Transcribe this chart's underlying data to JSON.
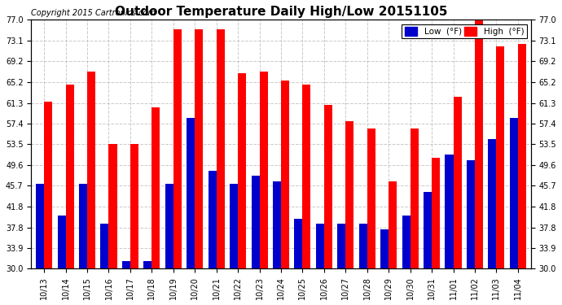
{
  "title": "Outdoor Temperature Daily High/Low 20151105",
  "copyright": "Copyright 2015 Cartronics.com",
  "legend_low": "Low  (°F)",
  "legend_high": "High  (°F)",
  "categories": [
    "10/13",
    "10/14",
    "10/15",
    "10/16",
    "10/17",
    "10/18",
    "10/19",
    "10/20",
    "10/21",
    "10/22",
    "10/23",
    "10/24",
    "10/25",
    "10/26",
    "10/27",
    "10/28",
    "10/29",
    "10/30",
    "10/31",
    "11/01",
    "11/02",
    "11/03",
    "11/04"
  ],
  "highs": [
    61.5,
    64.8,
    67.2,
    53.5,
    53.5,
    60.5,
    75.2,
    75.2,
    75.2,
    67.0,
    67.2,
    65.5,
    64.8,
    61.0,
    57.8,
    56.5,
    46.5,
    56.5,
    51.0,
    62.5,
    77.0,
    72.0,
    72.5
  ],
  "lows": [
    46.0,
    40.0,
    46.0,
    38.5,
    31.5,
    31.5,
    46.0,
    58.5,
    48.5,
    46.0,
    47.5,
    46.5,
    39.5,
    38.5,
    38.5,
    38.5,
    37.5,
    40.0,
    44.5,
    51.5,
    50.5,
    54.5,
    58.5
  ],
  "yticks": [
    30.0,
    33.9,
    37.8,
    41.8,
    45.7,
    49.6,
    53.5,
    57.4,
    61.3,
    65.2,
    69.2,
    73.1,
    77.0
  ],
  "ymin": 30.0,
  "ymax": 77.0,
  "bar_width": 0.38,
  "high_color": "#ff0000",
  "low_color": "#0000cc",
  "bg_color": "#ffffff",
  "grid_color": "#bbbbbb",
  "title_fontsize": 11,
  "copyright_fontsize": 7,
  "tick_fontsize": 7,
  "figwidth": 6.9,
  "figheight": 3.75,
  "dpi": 100
}
